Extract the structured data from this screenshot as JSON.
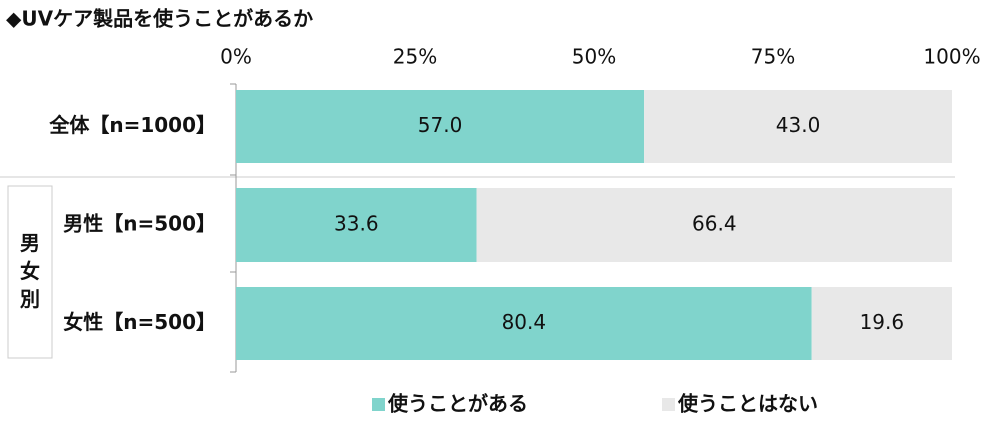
{
  "chart_data": {
    "type": "stacked-bar-horizontal",
    "title": "◆UVケア製品を使うことがあるか",
    "categories": [
      "全体【n=1000】",
      "男性【n=500】",
      "女性【n=500】"
    ],
    "group_label": "男女別",
    "series": [
      {
        "name": "使うことがある",
        "color": "#80d4cc",
        "values": [
          57.0,
          33.6,
          80.4
        ],
        "value_labels": [
          "57.0",
          "33.6",
          "80.4"
        ]
      },
      {
        "name": "使うことはない",
        "color": "#e8e8e8",
        "values": [
          43.0,
          66.4,
          19.6
        ],
        "value_labels": [
          "43.0",
          "66.4",
          "19.6"
        ]
      }
    ],
    "xlim": [
      0,
      100
    ],
    "xticks": [
      {
        "value": 0,
        "label": "0%"
      },
      {
        "value": 25,
        "label": "25%"
      },
      {
        "value": 50,
        "label": "50%"
      },
      {
        "value": 75,
        "label": "75%"
      },
      {
        "value": 100,
        "label": "100%"
      }
    ],
    "legend": "bottom"
  }
}
